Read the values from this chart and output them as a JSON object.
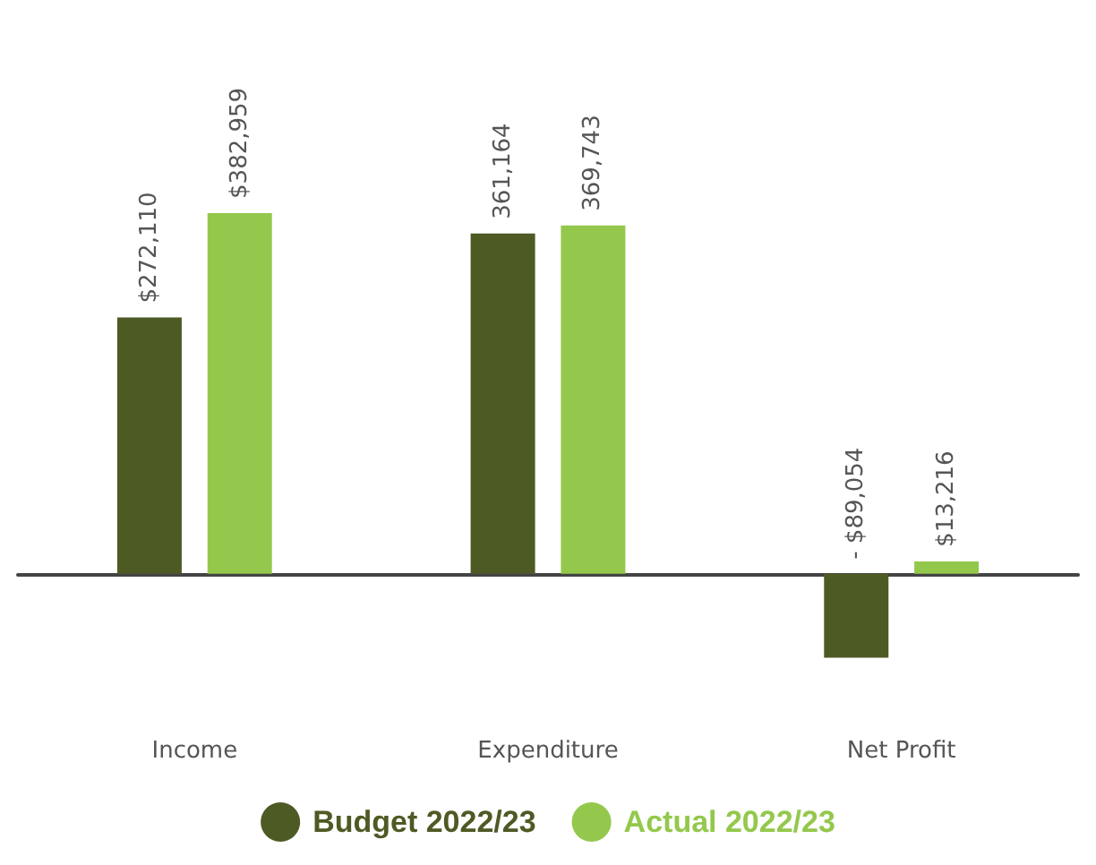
{
  "chart_data": {
    "type": "bar",
    "categories": [
      "Income",
      "Expenditure",
      "Net Profit"
    ],
    "series": [
      {
        "name": "Budget 2022/23",
        "color": "#4e5a24",
        "values": [
          272110,
          361164,
          -89054
        ],
        "value_labels": [
          "$272,110",
          "361,164",
          "- $89,054"
        ]
      },
      {
        "name": "Actual 2022/23",
        "color": "#94c84c",
        "values": [
          382959,
          369743,
          13216
        ],
        "value_labels": [
          "$382,959",
          "369,743",
          "$13,216"
        ]
      }
    ],
    "legend": "bottom"
  }
}
